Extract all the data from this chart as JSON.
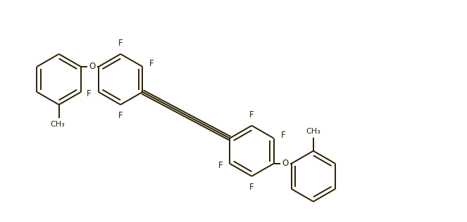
{
  "line_color": "#2b2000",
  "bg_color": "#ffffff",
  "line_width": 1.4,
  "font_size": 8.5,
  "figsize": [
    6.63,
    3.16
  ],
  "dpi": 100,
  "xlim": [
    0,
    13.0
  ],
  "ylim": [
    0,
    6.2
  ]
}
